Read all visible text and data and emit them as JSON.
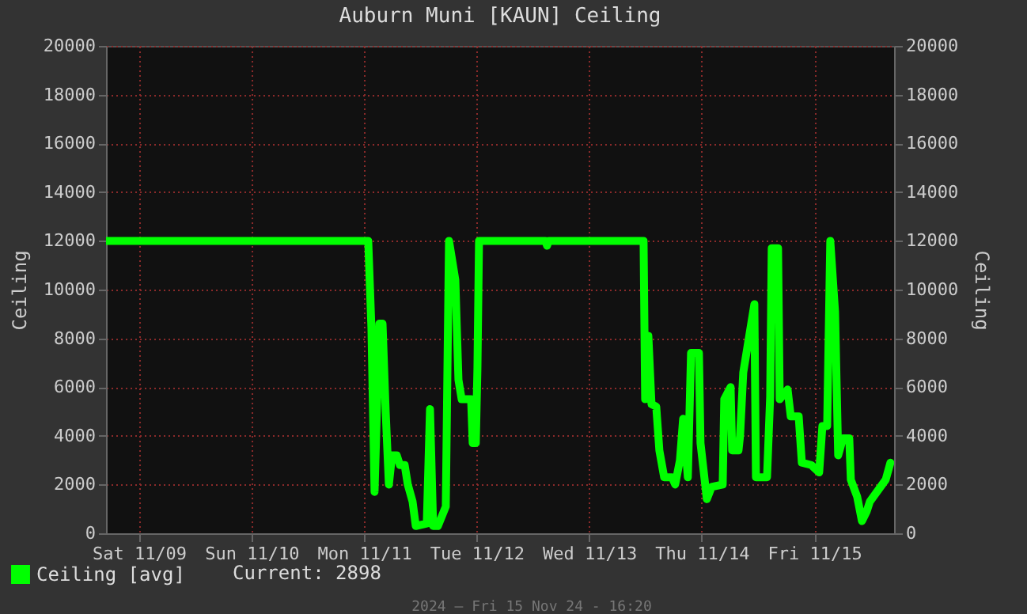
{
  "chart_data": {
    "type": "line",
    "title": "Auburn Muni [KAUN] Ceiling",
    "ylabel": "Ceiling",
    "y2label": "Ceiling",
    "x": [
      "2024-11-08T17:00",
      "2024-11-11T00:54",
      "2024-11-11T01:35",
      "2024-11-11T02:15",
      "2024-11-11T03:16",
      "2024-11-11T03:57",
      "2024-11-11T04:37",
      "2024-11-11T05:18",
      "2024-11-11T05:58",
      "2024-11-11T06:59",
      "2024-11-11T07:39",
      "2024-11-11T08:40",
      "2024-11-11T09:20",
      "2024-11-11T10:21",
      "2024-11-11T11:02",
      "2024-11-11T13:23",
      "2024-11-11T14:04",
      "2024-11-11T14:44",
      "2024-11-11T15:45",
      "2024-11-11T17:26",
      "2024-11-11T18:07",
      "2024-11-11T19:28",
      "2024-11-11T20:08",
      "2024-11-11T20:49",
      "2024-11-11T22:50",
      "2024-11-11T23:10",
      "2024-11-11T23:50",
      "2024-11-12T00:11",
      "2024-11-12T00:31",
      "2024-11-12T14:41",
      "2024-11-12T15:01",
      "2024-11-12T15:22",
      "2024-11-13T11:36",
      "2024-11-13T11:56",
      "2024-11-13T12:37",
      "2024-11-13T13:17",
      "2024-11-13T14:18",
      "2024-11-13T14:58",
      "2024-11-13T15:59",
      "2024-11-13T17:40",
      "2024-11-13T18:20",
      "2024-11-13T19:21",
      "2024-11-13T20:02",
      "2024-11-13T21:02",
      "2024-11-13T21:43",
      "2024-11-13T23:24",
      "2024-11-13T23:44",
      "2024-11-14T01:05",
      "2024-11-14T02:06",
      "2024-11-14T04:28",
      "2024-11-14T04:48",
      "2024-11-14T06:09",
      "2024-11-14T06:29",
      "2024-11-14T07:50",
      "2024-11-14T08:10",
      "2024-11-14T08:51",
      "2024-11-14T09:52",
      "2024-11-14T11:13",
      "2024-11-14T11:33",
      "2024-11-14T13:55",
      "2024-11-14T14:35",
      "2024-11-14T14:55",
      "2024-11-14T16:16",
      "2024-11-14T16:37",
      "2024-11-14T18:18",
      "2024-11-14T18:58",
      "2024-11-14T20:40",
      "2024-11-14T21:20",
      "2024-11-14T23:21",
      "2024-11-15T01:02",
      "2024-11-15T01:43",
      "2024-11-15T02:44",
      "2024-11-15T03:24",
      "2024-11-15T04:25",
      "2024-11-15T05:05",
      "2024-11-15T06:06",
      "2024-11-15T07:27",
      "2024-11-15T07:47",
      "2024-11-15T09:08",
      "2024-11-15T10:09",
      "2024-11-15T11:10",
      "2024-11-15T11:50",
      "2024-11-15T15:13",
      "2024-11-15T16:13"
    ],
    "series": [
      {
        "name": "Ceiling [avg]",
        "color": "#00ff00",
        "values": [
          12000,
          12000,
          8400,
          1700,
          8600,
          8600,
          5000,
          2000,
          3200,
          3200,
          2800,
          2800,
          2000,
          1300,
          300,
          400,
          5100,
          300,
          300,
          1100,
          12000,
          10400,
          6300,
          5500,
          5500,
          3700,
          3700,
          6800,
          12000,
          12000,
          11800,
          12000,
          12000,
          5500,
          8100,
          5300,
          5200,
          3400,
          2300,
          2300,
          2000,
          3000,
          4700,
          2300,
          7400,
          7400,
          3700,
          1400,
          1900,
          2000,
          5500,
          6000,
          3400,
          3400,
          4000,
          6600,
          7800,
          9400,
          2300,
          2300,
          5600,
          11700,
          11700,
          5500,
          5900,
          4800,
          4800,
          2900,
          2800,
          2500,
          4400,
          4400,
          12000,
          9100,
          3200,
          3900,
          3900,
          2200,
          1500,
          500,
          900,
          1300,
          2200,
          2898
        ]
      }
    ],
    "xlim": [
      "2024-11-08T17:00",
      "2024-11-15T17:00"
    ],
    "xticks": [
      {
        "value": "2024-11-09",
        "label": "Sat 11/09"
      },
      {
        "value": "2024-11-10",
        "label": "Sun 11/10"
      },
      {
        "value": "2024-11-11",
        "label": "Mon 11/11"
      },
      {
        "value": "2024-11-12",
        "label": "Tue 11/12"
      },
      {
        "value": "2024-11-13",
        "label": "Wed 11/13"
      },
      {
        "value": "2024-11-14",
        "label": "Thu 11/14"
      },
      {
        "value": "2024-11-15",
        "label": "Fri 11/15"
      }
    ],
    "ylim": [
      0,
      20000
    ],
    "yticks": [
      0,
      2000,
      4000,
      6000,
      8000,
      10000,
      12000,
      14000,
      16000,
      18000,
      20000
    ],
    "y2lim": [
      0,
      20000
    ],
    "y2ticks": [
      0,
      2000,
      4000,
      6000,
      8000,
      10000,
      12000,
      14000,
      16000,
      18000,
      20000
    ],
    "grid": true,
    "legend": "bottom left",
    "marker": "none",
    "line_style": "solid",
    "annotations": [
      "Current: 2898",
      "2024 — Fri 15 Nov 24 - 16:20"
    ]
  }
}
